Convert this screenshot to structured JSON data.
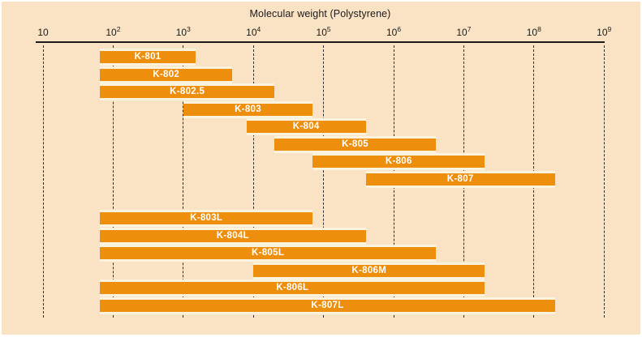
{
  "colors": {
    "background": "#FAE3C4",
    "bar_orange": "#EE8E0D",
    "bar_separator": "#FCF3DF",
    "axis_text": "#1a1a1a"
  },
  "chart_data": {
    "type": "bar",
    "subtype": "horizontal-log-range-bars",
    "title": "Molecular weight (Polystyrene)",
    "x_axis": {
      "scale": "log10",
      "min": 10,
      "max": 1000000000,
      "tick_exponents": [
        1,
        2,
        3,
        4,
        5,
        6,
        7,
        8,
        9
      ],
      "tick_labels": [
        "10",
        "10^2",
        "10^3",
        "10^4",
        "10^5",
        "10^6",
        "10^7",
        "10^8",
        "10^9"
      ],
      "gridlines": "dashed-vertical"
    },
    "legend": "none",
    "series": [
      {
        "label": "K-801",
        "group": 1,
        "mw_min": 65,
        "mw_max": 1500
      },
      {
        "label": "K-802",
        "group": 1,
        "mw_min": 65,
        "mw_max": 5000
      },
      {
        "label": "K-802.5",
        "group": 1,
        "mw_min": 65,
        "mw_max": 20000
      },
      {
        "label": "K-803",
        "group": 1,
        "mw_min": 1000,
        "mw_max": 70000
      },
      {
        "label": "K-804",
        "group": 1,
        "mw_min": 8000,
        "mw_max": 400000
      },
      {
        "label": "K-805",
        "group": 1,
        "mw_min": 20000,
        "mw_max": 4000000
      },
      {
        "label": "K-806",
        "group": 1,
        "mw_min": 70000,
        "mw_max": 20000000
      },
      {
        "label": "K-807",
        "group": 1,
        "mw_min": 400000,
        "mw_max": 200000000
      },
      {
        "label": "K-803L",
        "group": 2,
        "mw_min": 65,
        "mw_max": 70000
      },
      {
        "label": "K-804L",
        "group": 2,
        "mw_min": 65,
        "mw_max": 400000
      },
      {
        "label": "K-805L",
        "group": 2,
        "mw_min": 65,
        "mw_max": 4000000
      },
      {
        "label": "K-806M",
        "group": 2,
        "mw_min": 10000,
        "mw_max": 20000000
      },
      {
        "label": "K-806L",
        "group": 2,
        "mw_min": 65,
        "mw_max": 20000000
      },
      {
        "label": "K-807L",
        "group": 2,
        "mw_min": 65,
        "mw_max": 200000000
      }
    ]
  }
}
